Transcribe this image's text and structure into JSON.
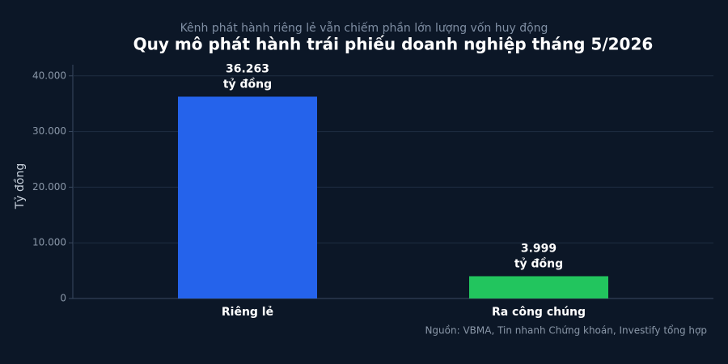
{
  "chart_data": {
    "type": "bar",
    "subtitle": "Kênh phát hành riêng lẻ vẫn chiếm phần lớn lượng vốn huy động",
    "title": "Quy mô phát hành trái phiếu doanh nghiệp tháng 5/2026",
    "y_label": "Tỷ đồng",
    "categories": [
      "Riêng lẻ",
      "Ra công chúng"
    ],
    "values": [
      36263,
      3999
    ],
    "value_labels": [
      "36.263\ntỷ đồng",
      "3.999\ntỷ đồng"
    ],
    "colors": [
      "#2563eb",
      "#22c55e"
    ],
    "ylim": [
      0,
      42000
    ],
    "yticks": [
      0,
      {
        "value": 10000,
        "label": "10.000"
      },
      {
        "value": 20000,
        "label": "20.000"
      },
      {
        "value": 30000,
        "label": "30.000"
      },
      {
        "value": 40000,
        "label": "40.000"
      }
    ],
    "grid": true,
    "source": "Nguồn: VBMA, Tin nhanh Chứng khoán, Investify tổng hợp"
  }
}
